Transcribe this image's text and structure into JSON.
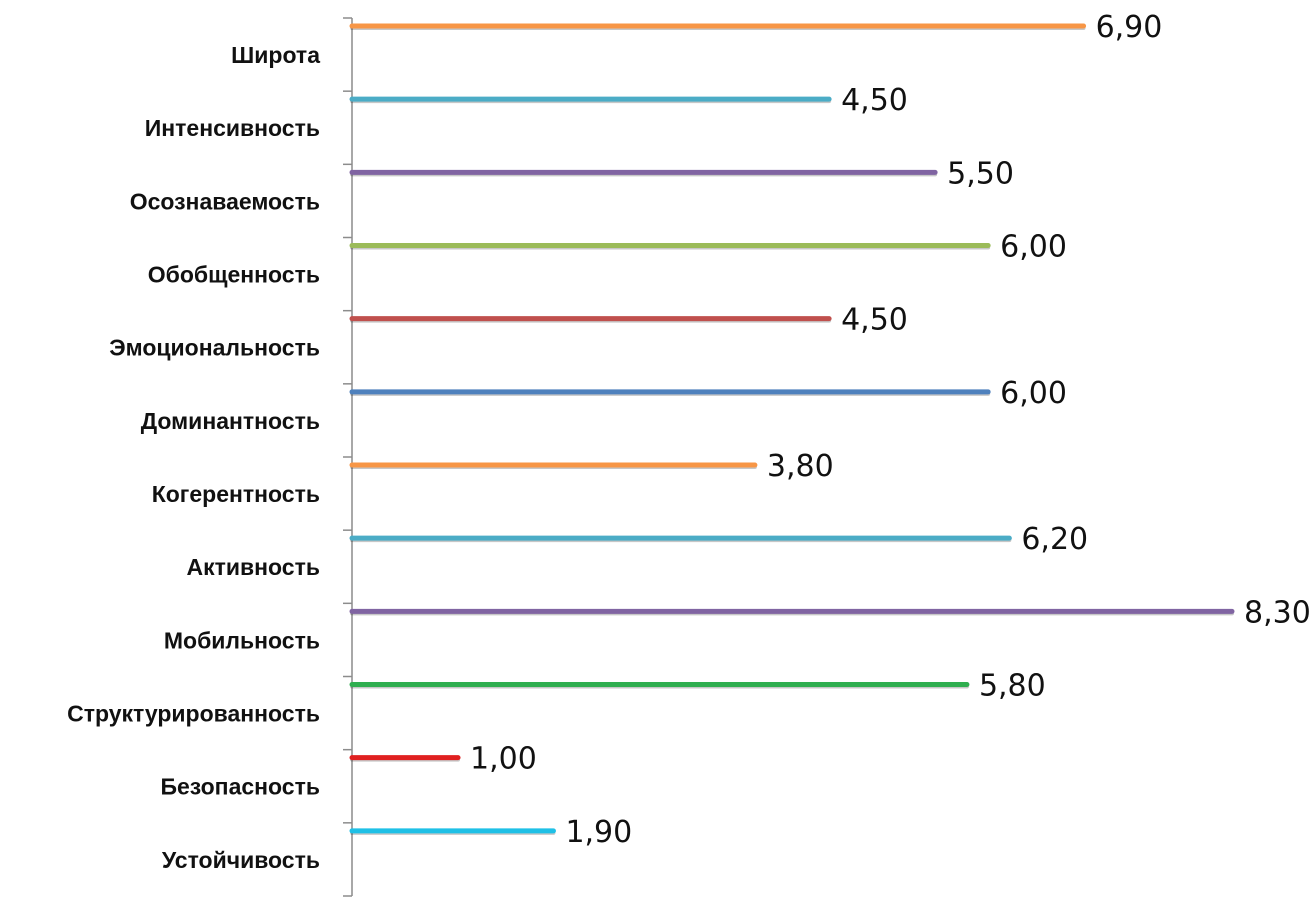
{
  "chart_data": {
    "type": "bar",
    "orientation": "horizontal",
    "title": "",
    "xlabel": "",
    "ylabel": "",
    "xlim": [
      0,
      8.3
    ],
    "grid": false,
    "legend": "none",
    "categories": [
      "Широта",
      "Интенсивность",
      "Осознаваемость",
      "Обобщенность",
      "Эмоциональность",
      "Доминантность",
      "Когерентность",
      "Активность",
      "Мобильность",
      "Структурированность",
      "Безопасность",
      "Устойчивость"
    ],
    "values": [
      6.9,
      4.5,
      5.5,
      6.0,
      4.5,
      6.0,
      3.8,
      6.2,
      8.3,
      5.8,
      1.0,
      1.9
    ],
    "value_labels": [
      "6,90",
      "4,50",
      "5,50",
      "6,00",
      "4,50",
      "6,00",
      "3,80",
      "6,20",
      "8,30",
      "5,80",
      "1,00",
      "1,90"
    ],
    "colors": [
      "#f79646",
      "#4bacc6",
      "#8064a2",
      "#9bbb59",
      "#c0504d",
      "#4f81bd",
      "#f79646",
      "#4bacc6",
      "#8064a2",
      "#2fae4f",
      "#e02020",
      "#1fc0e6"
    ]
  }
}
